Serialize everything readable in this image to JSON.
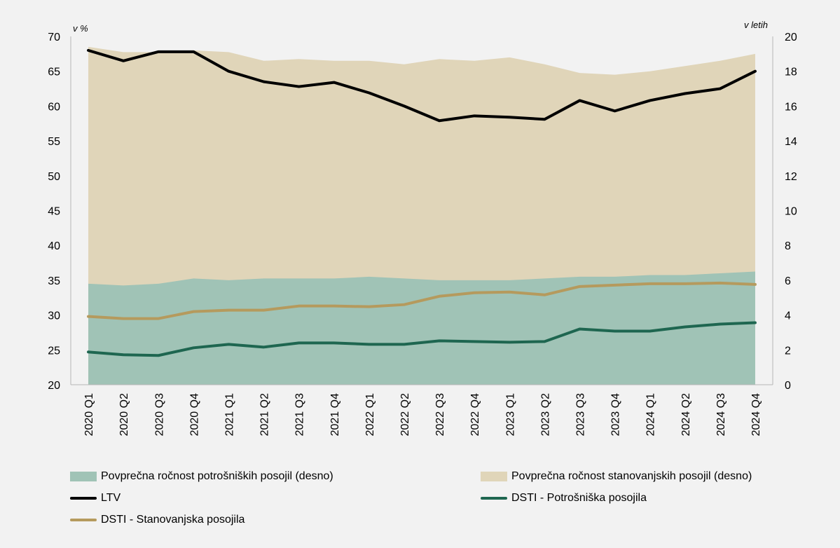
{
  "colors": {
    "background": "#f2f2f2",
    "consumer_area": "#a0c3b6",
    "housing_area": "#e0d5b9",
    "ltv": "#000000",
    "dsti_consumer": "#1e6650",
    "dsti_housing": "#b59a5d",
    "axis": "#b7b7b7"
  },
  "chart_data": {
    "type": "line",
    "left_unit": "v %",
    "right_unit": "v letih",
    "ylim_left": [
      20,
      70
    ],
    "yticks_left": [
      "20",
      "25",
      "30",
      "35",
      "40",
      "45",
      "50",
      "55",
      "60",
      "65",
      "70"
    ],
    "ylim_right": [
      0,
      20
    ],
    "yticks_right": [
      "0",
      "2",
      "4",
      "6",
      "8",
      "10",
      "12",
      "14",
      "16",
      "18",
      "20"
    ],
    "categories": [
      "2020 Q1",
      "2020 Q2",
      "2020 Q3",
      "2020 Q4",
      "2021 Q1",
      "2021 Q2",
      "2021 Q3",
      "2021 Q4",
      "2022 Q1",
      "2022 Q2",
      "2022 Q3",
      "2022 Q4",
      "2023 Q1",
      "2023 Q2",
      "2023 Q3",
      "2023 Q4",
      "2024 Q1",
      "2024 Q2",
      "2024 Q3",
      "2024 Q4"
    ],
    "areas": [
      {
        "name": "Povprečna ročnost stanovanjskih posojil (desno)",
        "axis": "right",
        "values": [
          19.4,
          19.1,
          19.1,
          19.2,
          19.1,
          18.6,
          18.7,
          18.6,
          18.6,
          18.4,
          18.7,
          18.6,
          18.8,
          18.4,
          17.9,
          17.8,
          18.0,
          18.3,
          18.6,
          19.0
        ]
      },
      {
        "name": "Povprečna ročnost potrošniških posojil (desno)",
        "axis": "right",
        "values": [
          5.8,
          5.7,
          5.8,
          6.1,
          6.0,
          6.1,
          6.1,
          6.1,
          6.2,
          6.1,
          6.0,
          6.0,
          6.0,
          6.1,
          6.2,
          6.2,
          6.3,
          6.3,
          6.4,
          6.5
        ]
      }
    ],
    "series": [
      {
        "name": "LTV",
        "axis": "left",
        "values": [
          68.0,
          66.5,
          67.8,
          67.8,
          65.0,
          63.5,
          62.8,
          63.4,
          61.9,
          60.0,
          57.9,
          58.6,
          58.4,
          58.1,
          60.8,
          59.3,
          60.8,
          61.8,
          62.5,
          65.0
        ]
      },
      {
        "name": "DSTI - Potrošniška posojila",
        "axis": "left",
        "values": [
          24.7,
          24.3,
          24.2,
          25.3,
          25.8,
          25.4,
          26.0,
          26.0,
          25.8,
          25.8,
          26.3,
          26.2,
          26.1,
          26.2,
          28.0,
          27.7,
          27.7,
          28.3,
          28.7,
          28.9
        ]
      },
      {
        "name": "DSTI - Stanovanjska posojila",
        "axis": "left",
        "values": [
          29.8,
          29.5,
          29.5,
          30.5,
          30.7,
          30.7,
          31.3,
          31.3,
          31.2,
          31.5,
          32.7,
          33.2,
          33.3,
          32.9,
          34.1,
          34.3,
          34.5,
          34.5,
          34.6,
          34.4
        ]
      }
    ]
  },
  "legend": {
    "consumer": "Povprečna ročnost potrošniških posojil (desno)",
    "housing": "Povprečna ročnost stanovanjskih posojil (desno)",
    "ltv": "LTV",
    "dsti_consumer": "DSTI - Potrošniška posojila",
    "dsti_housing": "DSTI - Stanovanjska posojila"
  }
}
